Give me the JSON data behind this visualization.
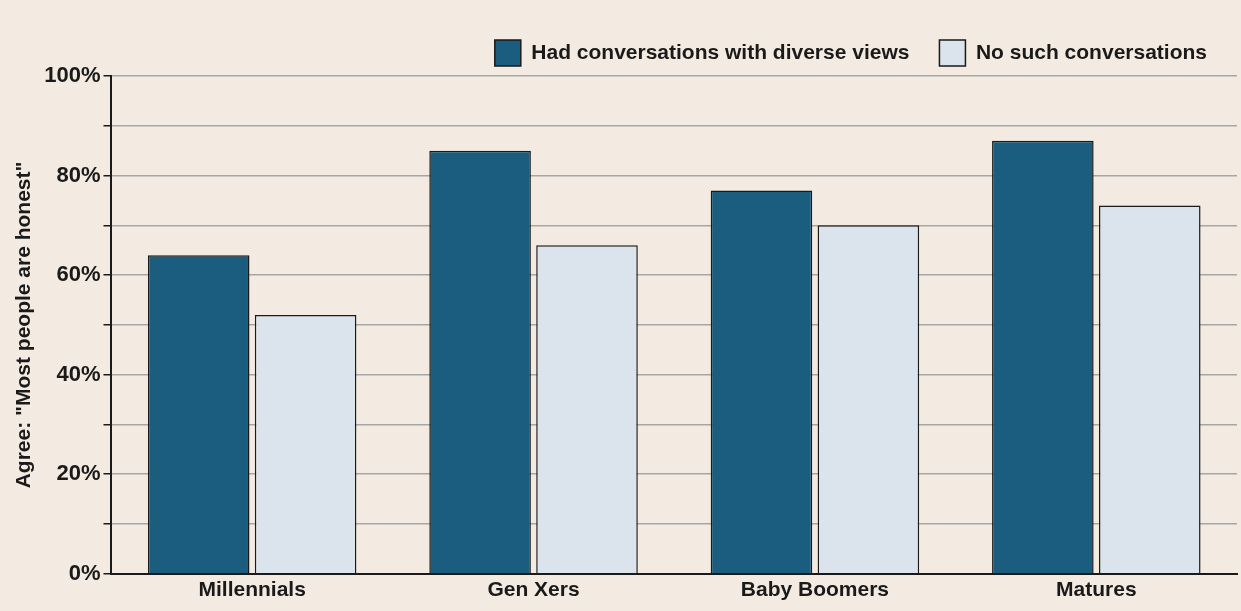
{
  "chart_data": {
    "type": "bar",
    "ylabel": "Agree: \"Most people are honest\"",
    "categories": [
      "Millennials",
      "Gen Xers",
      "Baby Boomers",
      "Matures"
    ],
    "series": [
      {
        "name": "Had conversations with diverse views",
        "color": "#1a5d7e",
        "values": [
          64,
          85,
          77,
          87
        ]
      },
      {
        "name": "No such conversations",
        "color": "#dbe4ec",
        "values": [
          52,
          66,
          70,
          74
        ]
      }
    ],
    "ylim": [
      0,
      100
    ],
    "yticks": [
      {
        "value": 0,
        "label": "0%"
      },
      {
        "value": 10,
        "label": null
      },
      {
        "value": 20,
        "label": "20%"
      },
      {
        "value": 30,
        "label": null
      },
      {
        "value": 40,
        "label": "40%"
      },
      {
        "value": 50,
        "label": null
      },
      {
        "value": 60,
        "label": "60%"
      },
      {
        "value": 70,
        "label": null
      },
      {
        "value": 80,
        "label": "80%"
      },
      {
        "value": 90,
        "label": null
      },
      {
        "value": 100,
        "label": "100%"
      }
    ],
    "grid": "y",
    "legend": "top right"
  }
}
